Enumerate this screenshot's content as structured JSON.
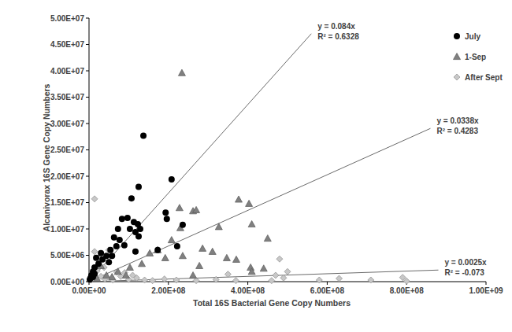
{
  "chart_data": {
    "type": "scatter",
    "x_label": "Total 16S Bacterial Gene Copy Numbers",
    "y_label": "Alcanivorax 16S Gene Copy Numbers",
    "xlim": [
      0,
      1000000000.0
    ],
    "xticks": [
      {
        "value": 0,
        "label": "0.00E+00"
      },
      {
        "value": 200000000.0,
        "label": "2.00E+08"
      },
      {
        "value": 400000000.0,
        "label": "4.00E+08"
      },
      {
        "value": 600000000.0,
        "label": "6.00E+08"
      },
      {
        "value": 800000000.0,
        "label": "8.00E+08"
      },
      {
        "value": 1000000000.0,
        "label": "1.00E+09"
      }
    ],
    "ylim": [
      0,
      50000000.0
    ],
    "yticks": [
      {
        "value": 0,
        "label": "0.00E+00"
      },
      {
        "value": 5000000.0,
        "label": "5.00E+06"
      },
      {
        "value": 10000000.0,
        "label": "1.00E+07"
      },
      {
        "value": 15000000.0,
        "label": "1.50E+07"
      },
      {
        "value": 20000000.0,
        "label": "2.00E+07"
      },
      {
        "value": 25000000.0,
        "label": "2.50E+07"
      },
      {
        "value": 30000000.0,
        "label": "3.00E+07"
      },
      {
        "value": 35000000.0,
        "label": "3.50E+07"
      },
      {
        "value": 40000000.0,
        "label": "4.00E+07"
      },
      {
        "value": 45000000.0,
        "label": "4.50E+07"
      },
      {
        "value": 50000000.0,
        "label": "5.00E+07"
      }
    ],
    "grid": false,
    "legend": "top-right",
    "series": [
      {
        "name": "July",
        "color": "#000000",
        "marker": "circle",
        "x": [
          137000000.0,
          125000000.0,
          208000000.0,
          107000000.0,
          97000000.0,
          83000000.0,
          113000000.0,
          123000000.0,
          129000000.0,
          117000000.0,
          73000000.0,
          63000000.0,
          69000000.0,
          54000000.0,
          44000000.0,
          34000000.0,
          24000000.0,
          14000000.0,
          10000000.0,
          6000000.0,
          4000000.0,
          50000000.0,
          58000000.0,
          89000000.0,
          117000000.0,
          125000000.0,
          193000000.0,
          196000000.0,
          236000000.0,
          222000000.0,
          173000000.0,
          77000000.0,
          30000000.0,
          18000000.0,
          103000000.0,
          10000000.0,
          2000000.0,
          14000000.0
        ],
        "values": [
          27700000.0,
          18000000.0,
          19400000.0,
          15800000.0,
          12100000.0,
          11900000.0,
          11300000.0,
          10900000.0,
          10000000.0,
          9400000.0,
          10000000.0,
          8400000.0,
          6700000.0,
          6000000.0,
          4900000.0,
          4200000.0,
          3400000.0,
          2700000.0,
          1900000.0,
          1200000.0,
          700000.0,
          3700000.0,
          4900000.0,
          6900000.0,
          5700000.0,
          8600000.0,
          13100000.0,
          11900000.0,
          10800000.0,
          6700000.0,
          6000000.0,
          7900000.0,
          5400000.0,
          4500000.0,
          10000000.0,
          900000.0,
          400000.0,
          1500000.0
        ],
        "trend": {
          "slope": 0.084,
          "x_end": 560000000.0,
          "equation": "y = 0.084x",
          "r_squared": "R² = 0.6328"
        }
      },
      {
        "name": "1-Sep",
        "color": "#808080",
        "marker": "triangle",
        "x": [
          234000000.0,
          262000000.0,
          270000000.0,
          228000000.0,
          230000000.0,
          377000000.0,
          403000000.0,
          410000000.0,
          450000000.0,
          327000000.0,
          286000000.0,
          311000000.0,
          347000000.0,
          371000000.0,
          407000000.0,
          410000000.0,
          278000000.0,
          236000000.0,
          192000000.0,
          173000000.0,
          153000000.0,
          208000000.0,
          133000000.0,
          103000000.0,
          73000000.0,
          44000000.0,
          30000000.0,
          93000000.0,
          262000000.0,
          440000000.0,
          58000000.0,
          20000000.0
        ],
        "values": [
          39600000.0,
          13400000.0,
          13600000.0,
          14000000.0,
          10200000.0,
          15600000.0,
          14800000.0,
          10900000.0,
          8200000.0,
          10400000.0,
          6300000.0,
          5700000.0,
          4500000.0,
          4200000.0,
          2700000.0,
          1900000.0,
          3000000.0,
          4900000.0,
          4500000.0,
          6000000.0,
          5400000.0,
          7900000.0,
          3400000.0,
          2700000.0,
          1900000.0,
          1200000.0,
          3000000.0,
          1200000.0,
          1200000.0,
          2500000.0,
          900000.0,
          600000.0
        ],
        "trend": {
          "slope": 0.0338,
          "x_end": 860000000.0,
          "equation": "y = 0.0338x",
          "r_squared": "R² = 0.4283"
        }
      },
      {
        "name": "After Sept",
        "color": "#c8c8c8",
        "marker": "diamond",
        "x": [
          14000000.0,
          50000000.0,
          14000000.0,
          24000000.0,
          38000000.0,
          480000000.0,
          470000000.0,
          460000000.0,
          500000000.0,
          490000000.0,
          630000000.0,
          710000000.0,
          790000000.0,
          800000000.0,
          580000000.0,
          350000000.0,
          370000000.0,
          320000000.0,
          220000000.0,
          270000000.0,
          190000000.0,
          160000000.0,
          10000000.0,
          20000000.0,
          30000000.0,
          40000000.0,
          60000000.0,
          80000000.0,
          100000000.0,
          120000000.0,
          140000000.0,
          5000000.0,
          25000000.0,
          70000000.0,
          90000000.0,
          110000000.0
        ],
        "values": [
          15700000.0,
          6000000.0,
          5700000.0,
          4500000.0,
          2700000.0,
          4300000.0,
          1200000.0,
          200000.0,
          1900000.0,
          700000.0,
          600000.0,
          300000.0,
          800000.0,
          100000.0,
          300000.0,
          1400000.0,
          200000.0,
          400000.0,
          300000.0,
          200000.0,
          500000.0,
          200000.0,
          1500000.0,
          2000000.0,
          1000000.0,
          500000.0,
          300000.0,
          1000000.0,
          400000.0,
          700000.0,
          300000.0,
          300000.0,
          3200000.0,
          1800000.0,
          1700000.0,
          1200000.0
        ],
        "trend": {
          "slope": 0.0025,
          "x_end": 880000000.0,
          "equation": "y = 0.0025x",
          "r_squared": "R² = -0.073"
        }
      }
    ]
  }
}
